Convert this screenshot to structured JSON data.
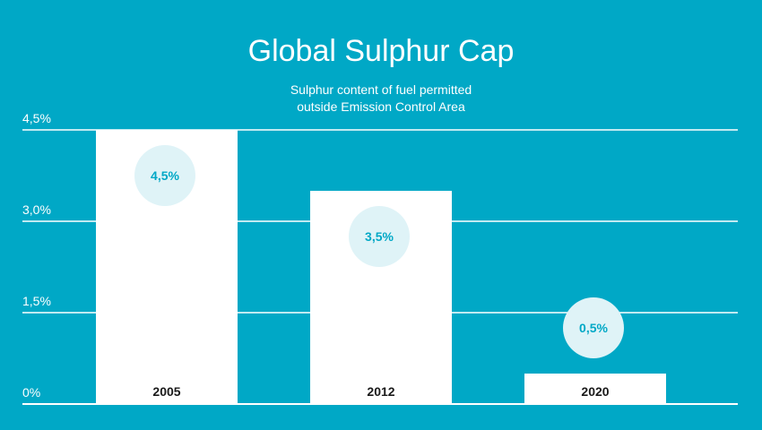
{
  "chart_data": {
    "type": "bar",
    "title": "Global Sulphur Cap",
    "subtitle": [
      "Sulphur content of fuel permitted",
      "outside Emission Control Area"
    ],
    "categories": [
      "2005",
      "2012",
      "2020"
    ],
    "values": [
      4.5,
      3.5,
      0.5
    ],
    "value_labels": [
      "4,5%",
      "3,5%",
      "0,5%"
    ],
    "yticks": [
      0,
      1.5,
      3.0,
      4.5
    ],
    "ytick_labels": [
      "0%",
      "1,5%",
      "3,0%",
      "4,5%"
    ],
    "ylim": [
      0,
      4.5
    ],
    "grid": true,
    "xlabel": "",
    "ylabel": ""
  },
  "colors": {
    "background": "#00a8c6",
    "bar": "#ffffff",
    "bubble": "#dff3f7",
    "bubble_text": "#00a8c6",
    "grid": "#ffffff",
    "text": "#ffffff",
    "category_text": "#1a1a1a"
  }
}
